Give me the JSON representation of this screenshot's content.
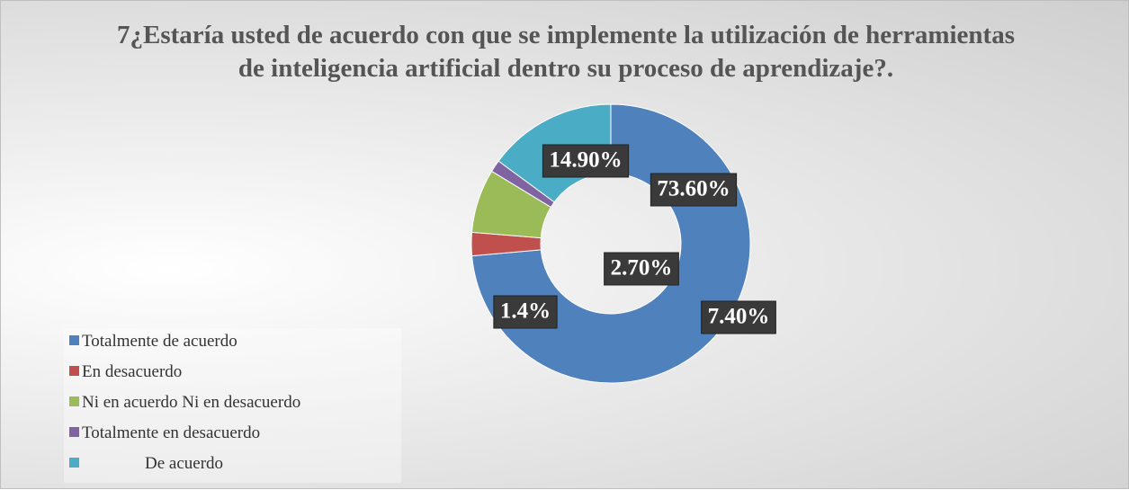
{
  "chart_data": {
    "type": "donut",
    "title": "7¿Estaría usted de acuerdo con que se implemente la utilización de herramientas de inteligencia artificial dentro su proceso de aprendizaje?.",
    "categories": [
      "Totalmente de acuerdo",
      "En desacuerdo",
      "Ni en acuerdo Ni en desacuerdo",
      "Totalmente en desacuerdo",
      "De acuerdo"
    ],
    "values": [
      73.6,
      2.7,
      7.4,
      1.4,
      14.9
    ],
    "value_labels": [
      "73.60%",
      "2.70%",
      "7.40%",
      "1.4%",
      "14.90%"
    ],
    "colors": [
      "#4f81bd",
      "#c0504d",
      "#9bbb59",
      "#8064a2",
      "#4bacc6"
    ],
    "legend": "bottom-left"
  }
}
